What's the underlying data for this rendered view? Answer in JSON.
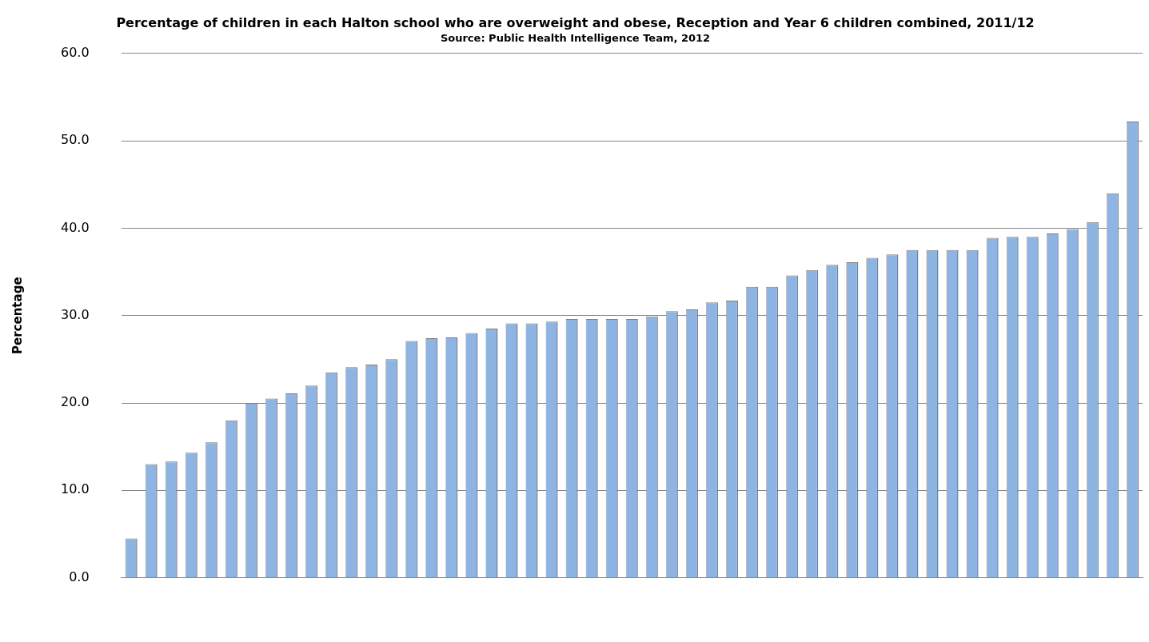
{
  "chart_data": {
    "type": "bar",
    "title": "Percentage of children in each Halton school who are overweight and obese, Reception and Year 6 children combined, 2011/12",
    "subtitle": "Source: Public Health Intelligence Team, 2012",
    "ylabel": "Percentage",
    "categories": [
      null,
      null,
      null,
      null,
      null,
      null,
      null,
      null,
      null,
      null,
      null,
      null,
      null,
      null,
      null,
      null,
      null,
      null,
      null,
      null,
      null,
      null,
      null,
      null,
      null,
      null,
      null,
      null,
      null,
      null,
      null,
      null,
      null,
      null,
      null,
      null,
      null,
      null,
      null,
      null,
      null,
      null,
      null,
      null,
      null,
      null,
      null,
      null,
      null,
      null,
      null
    ],
    "values": [
      4.5,
      13.0,
      13.3,
      14.3,
      15.5,
      18.0,
      20.0,
      20.5,
      21.1,
      22.0,
      23.5,
      24.1,
      24.4,
      25.0,
      27.1,
      27.4,
      27.5,
      28.0,
      28.5,
      29.1,
      29.1,
      29.3,
      29.6,
      29.6,
      29.6,
      29.6,
      29.9,
      30.5,
      30.7,
      31.5,
      31.7,
      33.3,
      33.3,
      34.6,
      35.2,
      35.8,
      36.1,
      36.6,
      37.0,
      37.5,
      37.5,
      37.5,
      37.5,
      38.9,
      39.0,
      39.0,
      39.4,
      39.9,
      40.7,
      44.0,
      52.2
    ],
    "color": "#8eb4e3",
    "ylim": [
      0,
      60
    ],
    "yticks": [
      {
        "value": 0,
        "label": "0.0"
      },
      {
        "value": 10,
        "label": "10.0"
      },
      {
        "value": 20,
        "label": "20.0"
      },
      {
        "value": 30,
        "label": "30.0"
      },
      {
        "value": 40,
        "label": "40.0"
      },
      {
        "value": 50,
        "label": "50.0"
      },
      {
        "value": 60,
        "label": "60.0"
      }
    ],
    "grid": "y"
  }
}
